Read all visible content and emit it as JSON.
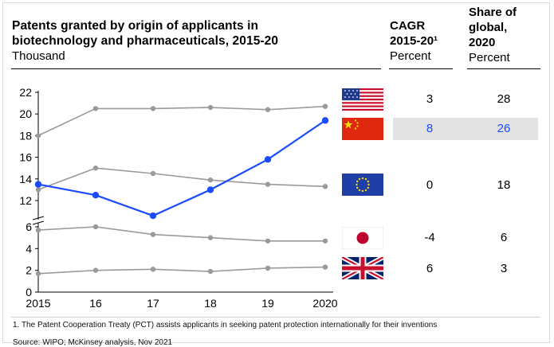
{
  "header": {
    "title_line1": "Patents granted by origin of applicants in",
    "title_line2": "biotechnology and pharmaceuticals, 2015-20",
    "unit": "Thousand",
    "cagr_line1": "CAGR",
    "cagr_line2": "2015-20¹",
    "cagr_unit": "Percent",
    "share_line1": "Share of",
    "share_line2": "global,",
    "share_line3": "2020",
    "share_unit": "Percent"
  },
  "table": {
    "rows": [
      {
        "flag": "us-flag-icon",
        "cagr": "3",
        "share": "28",
        "highlight": false
      },
      {
        "flag": "china-flag-icon",
        "cagr": "8",
        "share": "26",
        "highlight": true
      },
      {
        "flag": "eu-flag-icon",
        "cagr": "0",
        "share": "18",
        "highlight": false
      },
      {
        "flag": "japan-flag-icon",
        "cagr": "-4",
        "share": "6",
        "highlight": false
      },
      {
        "flag": "uk-flag-icon",
        "cagr": "6",
        "share": "3",
        "highlight": false
      }
    ],
    "highlight_color": "#1a4bff",
    "highlight_band_color": "#e3e3e3"
  },
  "chart_data": {
    "type": "line",
    "x": [
      "2015",
      "16",
      "17",
      "18",
      "19",
      "2020"
    ],
    "y_ticks": [
      "0",
      "2",
      "4",
      "6",
      "12",
      "14",
      "16",
      "18",
      "20",
      "22"
    ],
    "axis_break": true,
    "series": [
      {
        "values": [
          18.0,
          20.5,
          20.5,
          20.6,
          20.4,
          20.7
        ],
        "color": "#9a9a9a"
      },
      {
        "values": [
          13.5,
          12.5,
          10.6,
          13.0,
          15.8,
          19.4
        ],
        "color": "#1a4bff"
      },
      {
        "values": [
          13.0,
          15.0,
          14.5,
          13.9,
          13.5,
          13.3
        ],
        "color": "#9a9a9a"
      },
      {
        "values": [
          5.7,
          6.0,
          5.3,
          5.0,
          4.7,
          4.7
        ],
        "color": "#9a9a9a"
      },
      {
        "values": [
          1.7,
          2.0,
          2.1,
          1.9,
          2.2,
          2.3
        ],
        "color": "#9a9a9a"
      }
    ]
  },
  "footnote": "1.   The Patent Cooperation Treaty (PCT) assists applicants in seeking patent protection internationally for their inventions",
  "source": "Source: WIPO; McKinsey analysis, Nov 2021"
}
